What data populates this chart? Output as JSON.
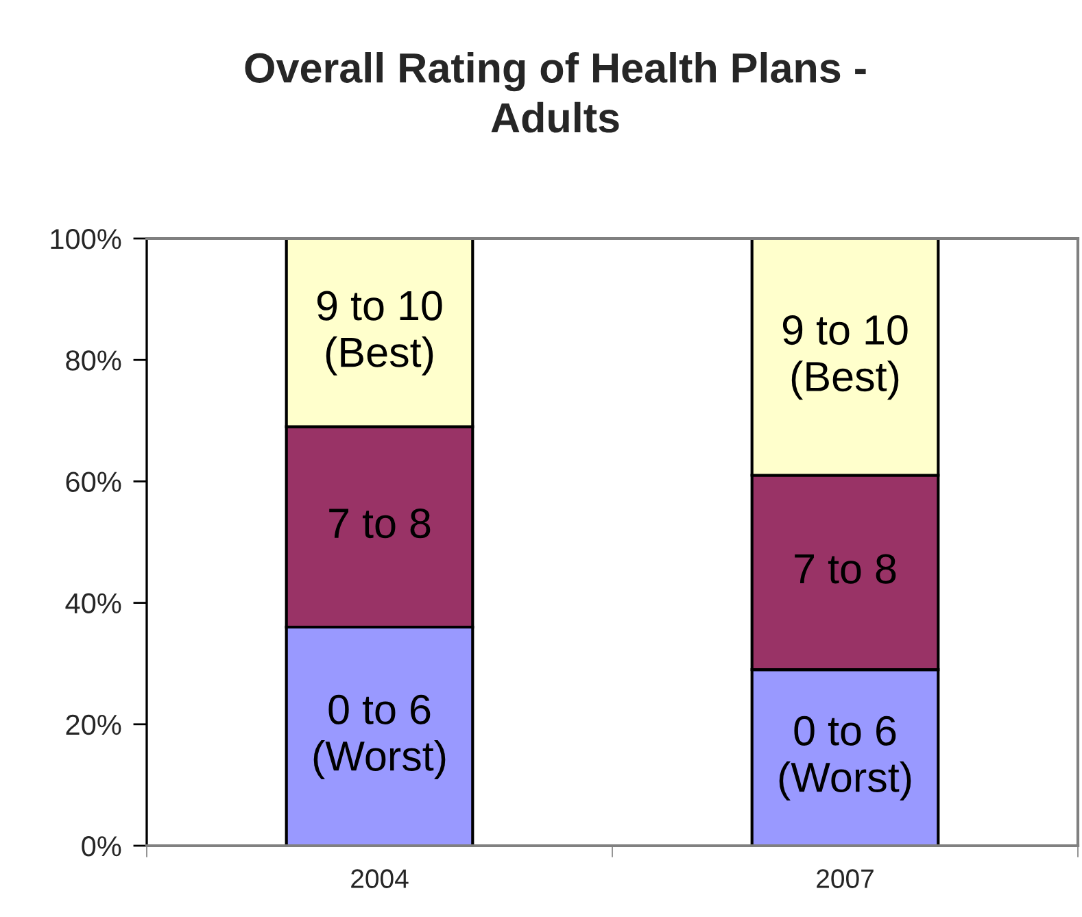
{
  "chart_data": {
    "type": "bar",
    "title": "Overall Rating of Health Plans -\nAdults",
    "categories": [
      "2004",
      "2007"
    ],
    "stacked": true,
    "series": [
      {
        "name": "0 to 6\n(Worst)",
        "color": "#9999ff",
        "values": [
          36,
          29
        ]
      },
      {
        "name": "7 to 8",
        "color": "#993366",
        "values": [
          33,
          32
        ]
      },
      {
        "name": "9 to 10\n(Best)",
        "color": "#ffffcc",
        "values": [
          31,
          39
        ]
      }
    ],
    "ylim": [
      0,
      100
    ],
    "yticks": [
      {
        "value": 0,
        "label": "0%"
      },
      {
        "value": 20,
        "label": "20%"
      },
      {
        "value": 40,
        "label": "40%"
      },
      {
        "value": 60,
        "label": "60%"
      },
      {
        "value": 80,
        "label": "80%"
      },
      {
        "value": 100,
        "label": "100%"
      }
    ]
  }
}
